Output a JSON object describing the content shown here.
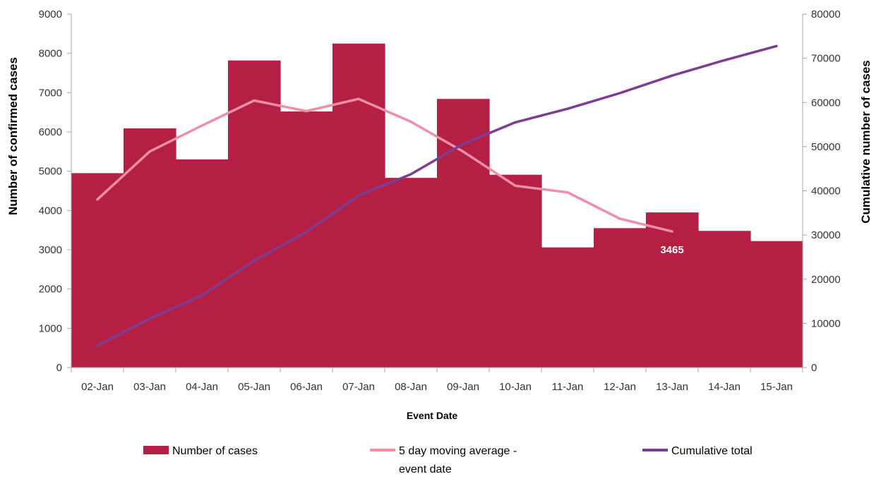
{
  "chart_data": {
    "type": "bar",
    "categories": [
      "02-Jan",
      "03-Jan",
      "04-Jan",
      "05-Jan",
      "06-Jan",
      "07-Jan",
      "08-Jan",
      "09-Jan",
      "10-Jan",
      "11-Jan",
      "12-Jan",
      "13-Jan",
      "14-Jan",
      "15-Jan"
    ],
    "series": [
      {
        "name": "Number of cases",
        "type": "bar",
        "axis": "left",
        "color": "#b51f43",
        "values": [
          4950,
          6090,
          5300,
          7820,
          6520,
          8250,
          4830,
          6840,
          4910,
          3060,
          3550,
          3950,
          3480,
          3220
        ]
      },
      {
        "name": "5 day moving average - event date",
        "legend_lines": [
          "5 day moving average -",
          "event date"
        ],
        "type": "line",
        "axis": "left",
        "color": "#ef8fa6",
        "values": [
          4280,
          5500,
          6160,
          6800,
          6530,
          6840,
          6260,
          5500,
          4630,
          4460,
          3790,
          3465,
          null,
          null
        ]
      },
      {
        "name": "Cumulative total",
        "type": "line",
        "axis": "right",
        "color": "#7b3e94",
        "values": [
          4950,
          11040,
          16340,
          24160,
          30680,
          38930,
          43760,
          50600,
          55510,
          58570,
          62120,
          66070,
          69550,
          72770
        ]
      }
    ],
    "xlabel": "Event Date",
    "ylabel": "Number of confirmed cases",
    "y2label": "Cumulative number of cases",
    "ylim": [
      0,
      9000
    ],
    "y2lim": [
      0,
      80000
    ],
    "yticks": [
      0,
      1000,
      2000,
      3000,
      4000,
      5000,
      6000,
      7000,
      8000,
      9000
    ],
    "y2ticks": [
      0,
      10000,
      20000,
      30000,
      40000,
      50000,
      60000,
      70000,
      80000
    ],
    "annotations": [
      {
        "series": "5 day moving average - event date",
        "category": "13-Jan",
        "text": "3465"
      }
    ],
    "grid": false,
    "legend_position": "bottom"
  }
}
